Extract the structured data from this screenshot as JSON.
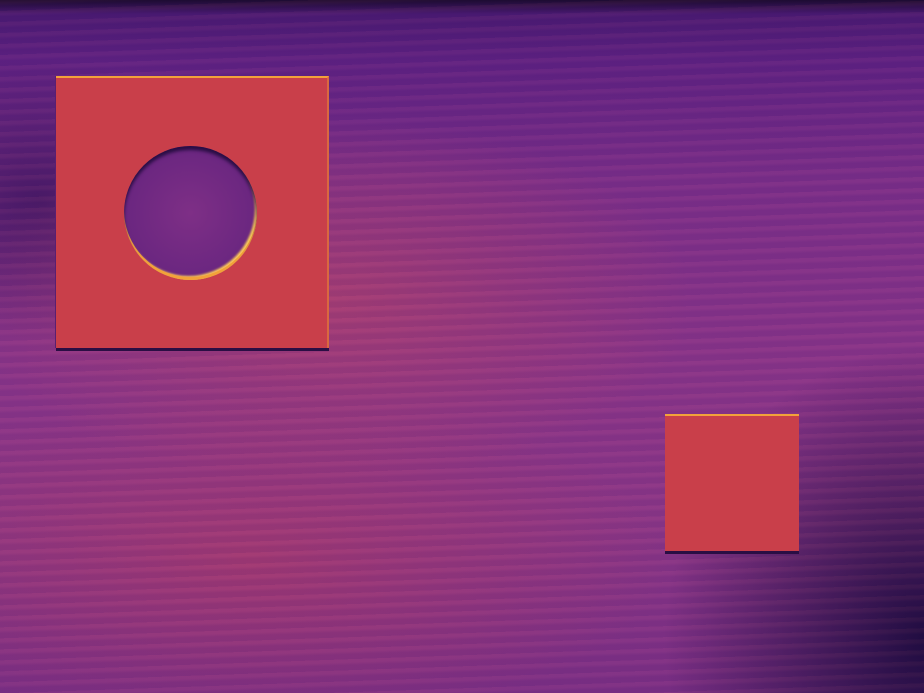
{
  "image": {
    "kind": "thermal-image",
    "palette": "inferno",
    "colors": {
      "background_dark": "#2a0f45",
      "background_mid": "#7a2e8a",
      "warm_panel": "#c93f4a",
      "hot_edge": "#f2a23a",
      "cold_hole": "#6a2680"
    }
  }
}
